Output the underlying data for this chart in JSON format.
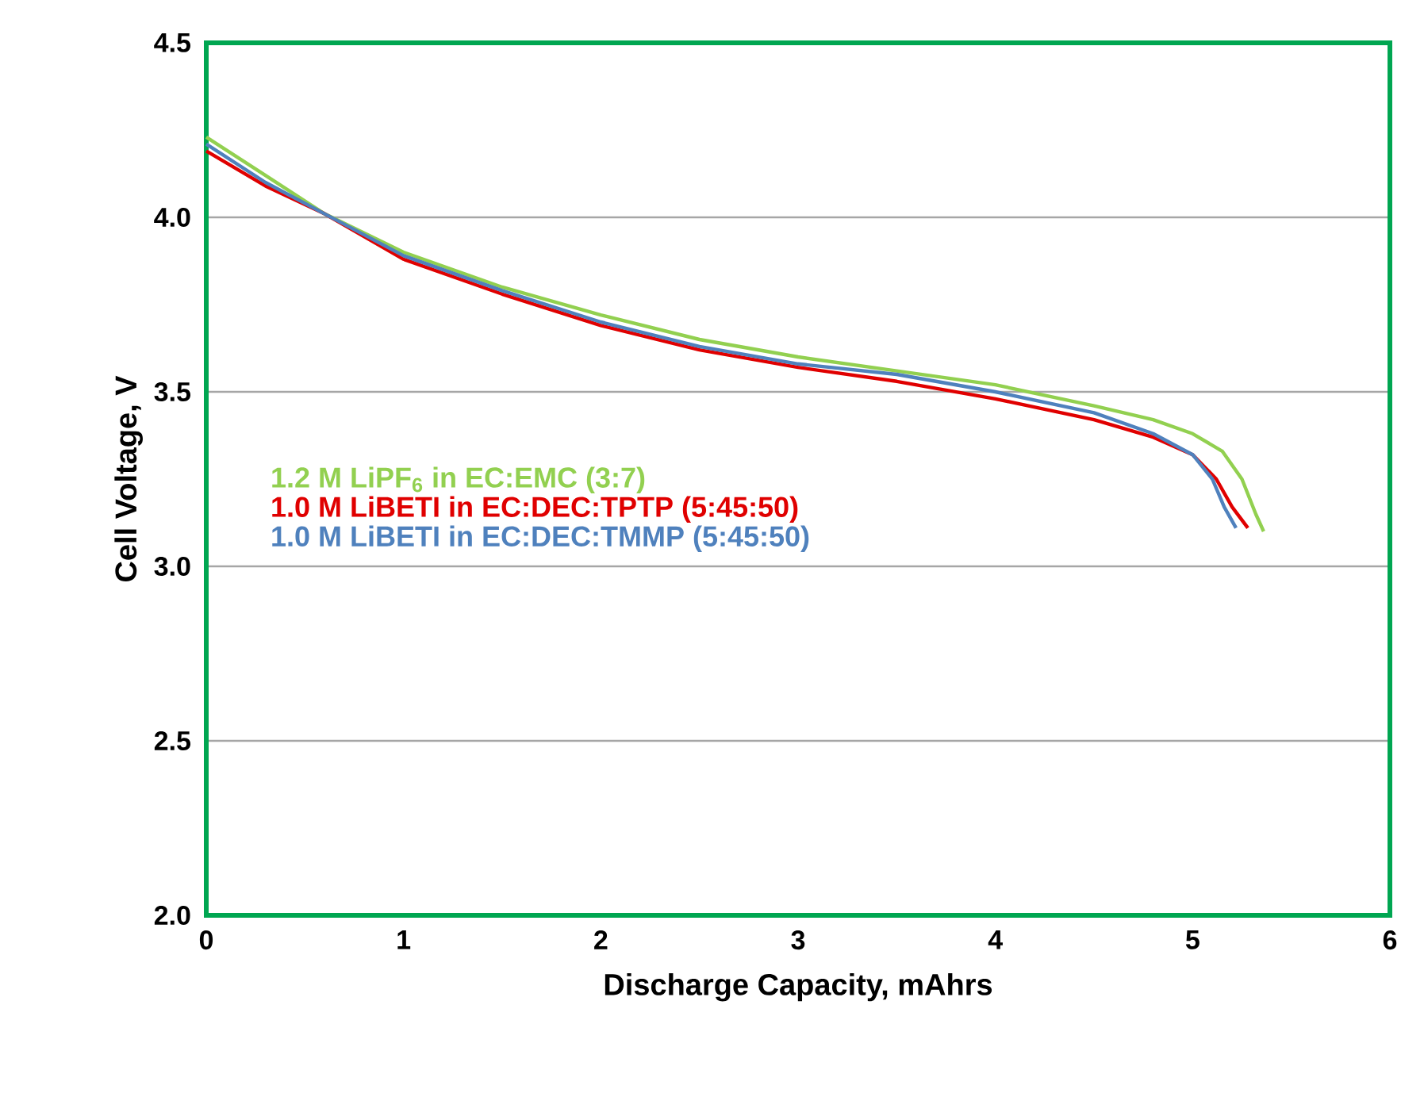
{
  "chart_data": {
    "type": "line",
    "xlabel": "Discharge Capacity, mAhrs",
    "ylabel": "Cell Voltage, V",
    "xlim": [
      0,
      6
    ],
    "xticks": [
      0,
      1,
      2,
      3,
      4,
      5,
      6
    ],
    "ylim": [
      2.0,
      4.5
    ],
    "yticks": [
      {
        "value": 2.0,
        "label": "2.0"
      },
      {
        "value": 2.5,
        "label": "2.5"
      },
      {
        "value": 3.0,
        "label": "3.0"
      },
      {
        "value": 3.5,
        "label": "3.5"
      },
      {
        "value": 4.0,
        "label": "4.0"
      },
      {
        "value": 4.5,
        "label": "4.5"
      }
    ],
    "grid": "y",
    "legend": "left",
    "marker": "none",
    "line_style": "solid",
    "series": [
      {
        "name": "1.2 M LiPF$_{6}$ in EC:EMC (3:7)",
        "color": "#92d050",
        "x": [
          0,
          0.3,
          0.6,
          1,
          1.5,
          2,
          2.5,
          3,
          3.5,
          4,
          4.5,
          4.8,
          5.0,
          5.15,
          5.25,
          5.32,
          5.36
        ],
        "values": [
          4.23,
          4.12,
          4.01,
          3.9,
          3.8,
          3.72,
          3.65,
          3.6,
          3.56,
          3.52,
          3.46,
          3.42,
          3.38,
          3.33,
          3.25,
          3.15,
          3.1
        ]
      },
      {
        "name": "1.0 M LiBETI in EC:DEC:TPTP (5:45:50)",
        "color": "#e00000",
        "x": [
          0,
          0.3,
          0.6,
          1,
          1.5,
          2,
          2.5,
          3,
          3.5,
          4,
          4.5,
          4.8,
          5.0,
          5.12,
          5.2,
          5.28
        ],
        "values": [
          4.19,
          4.09,
          4.01,
          3.88,
          3.78,
          3.69,
          3.62,
          3.57,
          3.53,
          3.48,
          3.42,
          3.37,
          3.32,
          3.25,
          3.17,
          3.11
        ]
      },
      {
        "name": "1.0 M LiBETI in EC:DEC:TMMP (5:45:50)",
        "color": "#4f81bd",
        "x": [
          0,
          0.3,
          0.6,
          1,
          1.5,
          2,
          2.5,
          3,
          3.5,
          4,
          4.5,
          4.8,
          5.0,
          5.1,
          5.16,
          5.22
        ],
        "values": [
          4.21,
          4.1,
          4.01,
          3.89,
          3.79,
          3.7,
          3.63,
          3.58,
          3.55,
          3.5,
          3.44,
          3.38,
          3.32,
          3.25,
          3.17,
          3.11
        ]
      }
    ]
  }
}
